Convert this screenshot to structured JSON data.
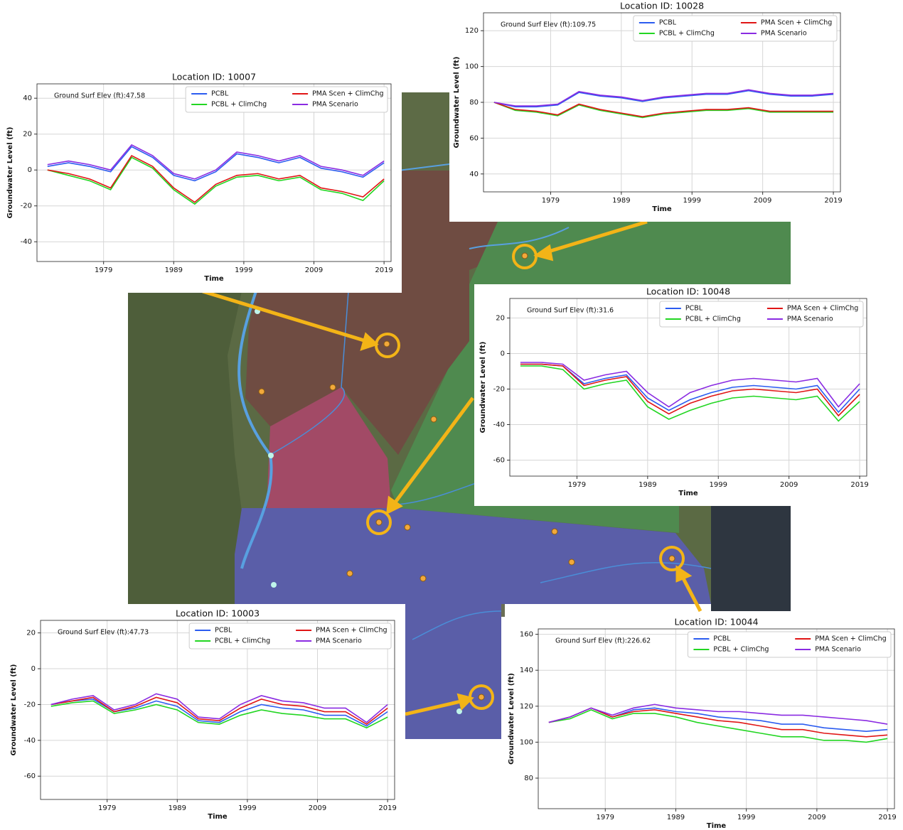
{
  "chart_data": [
    {
      "type": "line",
      "title": "Location ID: 10007",
      "annotation": "Ground Surf Elev (ft):47.58",
      "xlabel": "Time",
      "ylabel": "Groundwater Level (ft)",
      "x": [
        1971,
        1974,
        1977,
        1980,
        1983,
        1986,
        1989,
        1992,
        1995,
        1998,
        2001,
        2004,
        2007,
        2010,
        2013,
        2016,
        2019
      ],
      "series": [
        {
          "name": "PCBL",
          "color": "#2b5cf0",
          "values": [
            2,
            4,
            2,
            -1,
            13,
            7,
            -3,
            -6,
            -1,
            9,
            7,
            4,
            7,
            1,
            -1,
            -4,
            4
          ]
        },
        {
          "name": "PCBL + ClimChg",
          "color": "#22d622",
          "values": [
            0,
            -3,
            -6,
            -11,
            7,
            1,
            -11,
            -19,
            -9,
            -4,
            -3,
            -6,
            -4,
            -11,
            -13,
            -17,
            -6
          ]
        },
        {
          "name": "PMA Scen + ClimChg",
          "color": "#e01515",
          "values": [
            0,
            -2,
            -5,
            -10,
            8,
            2,
            -10,
            -18,
            -8,
            -3,
            -2,
            -5,
            -3,
            -10,
            -12,
            -15,
            -5
          ]
        },
        {
          "name": "PMA Scenario",
          "color": "#8a2be2",
          "values": [
            3,
            5,
            3,
            0,
            14,
            8,
            -2,
            -5,
            0,
            10,
            8,
            5,
            8,
            2,
            0,
            -3,
            5
          ]
        }
      ],
      "xlim": [
        1969.5,
        2020
      ],
      "ylim": [
        -51,
        48
      ],
      "xticks": [
        1979,
        1989,
        1999,
        2009,
        2019
      ],
      "yticks": [
        -40,
        -20,
        0,
        20,
        40
      ],
      "grid": true,
      "legend": "upper center"
    },
    {
      "type": "line",
      "title": "Location ID: 10028",
      "annotation": "Ground Surf Elev (ft):109.75",
      "xlabel": "Time",
      "ylabel": "Groundwater Level (ft)",
      "x": [
        1971,
        1974,
        1977,
        1980,
        1983,
        1986,
        1989,
        1992,
        1995,
        1998,
        2001,
        2004,
        2007,
        2010,
        2013,
        2016,
        2019
      ],
      "series": [
        {
          "name": "PCBL",
          "color": "#2b5cf0",
          "values": [
            80,
            77.5,
            77.5,
            78.5,
            85.5,
            83.5,
            82.5,
            80.5,
            82.5,
            83.5,
            84.5,
            84.5,
            86.5,
            84.5,
            83.5,
            83.5,
            84.5
          ]
        },
        {
          "name": "PCBL + ClimChg",
          "color": "#22d622",
          "values": [
            80,
            75.5,
            74.5,
            72.5,
            78.5,
            75.5,
            73.5,
            71.5,
            73.5,
            74.5,
            75.5,
            75.5,
            76.5,
            74.5,
            74.5,
            74.5,
            74.5
          ]
        },
        {
          "name": "PMA Scen + ClimChg",
          "color": "#e01515",
          "values": [
            80,
            76,
            75,
            73,
            79,
            76,
            74,
            72,
            74,
            75,
            76,
            76,
            77,
            75,
            75,
            75,
            75
          ]
        },
        {
          "name": "PMA Scenario",
          "color": "#8a2be2",
          "values": [
            80,
            78,
            78,
            79,
            86,
            84,
            83,
            81,
            83,
            84,
            85,
            85,
            87,
            85,
            84,
            84,
            85
          ]
        }
      ],
      "xlim": [
        1969.5,
        2020
      ],
      "ylim": [
        30,
        130
      ],
      "xticks": [
        1979,
        1989,
        1999,
        2009,
        2019
      ],
      "yticks": [
        40,
        60,
        80,
        100,
        120
      ],
      "grid": true,
      "legend": "upper center"
    },
    {
      "type": "line",
      "title": "Location ID: 10048",
      "annotation": "Ground Surf Elev (ft):31.6",
      "xlabel": "Time",
      "ylabel": "Groundwater Level (ft)",
      "x": [
        1971,
        1974,
        1977,
        1980,
        1983,
        1986,
        1989,
        1992,
        1995,
        1998,
        2001,
        2004,
        2007,
        2010,
        2013,
        2016,
        2019
      ],
      "series": [
        {
          "name": "PCBL",
          "color": "#2b5cf0",
          "values": [
            -6,
            -6,
            -7,
            -17,
            -14,
            -12,
            -25,
            -32,
            -26,
            -22,
            -19,
            -18,
            -19,
            -20,
            -18,
            -33,
            -20
          ]
        },
        {
          "name": "PCBL + ClimChg",
          "color": "#22d622",
          "values": [
            -7,
            -7,
            -9,
            -20,
            -17,
            -15,
            -30,
            -37,
            -32,
            -28,
            -25,
            -24,
            -25,
            -26,
            -24,
            -38,
            -27
          ]
        },
        {
          "name": "PMA Scen + ClimChg",
          "color": "#e01515",
          "values": [
            -6,
            -6,
            -7,
            -18,
            -15,
            -13,
            -27,
            -34,
            -28,
            -24,
            -21,
            -20,
            -21,
            -22,
            -20,
            -35,
            -23
          ]
        },
        {
          "name": "PMA Scenario",
          "color": "#8a2be2",
          "values": [
            -5,
            -5,
            -6,
            -15,
            -12,
            -10,
            -22,
            -30,
            -22,
            -18,
            -15,
            -14,
            -15,
            -16,
            -14,
            -30,
            -17
          ]
        }
      ],
      "xlim": [
        1969.5,
        2020
      ],
      "ylim": [
        -69,
        31
      ],
      "xticks": [
        1979,
        1989,
        1999,
        2009,
        2019
      ],
      "yticks": [
        -60,
        -40,
        -20,
        0,
        20
      ],
      "grid": true,
      "legend": "upper center"
    },
    {
      "type": "line",
      "title": "Location ID: 10003",
      "annotation": "Ground Surf Elev (ft):47.73",
      "xlabel": "Time",
      "ylabel": "Groundwater Level (ft)",
      "x": [
        1971,
        1974,
        1977,
        1980,
        1983,
        1986,
        1989,
        1992,
        1995,
        1998,
        2001,
        2004,
        2007,
        2010,
        2013,
        2016,
        2019
      ],
      "series": [
        {
          "name": "PCBL",
          "color": "#2b5cf0",
          "values": [
            -20,
            -18,
            -17,
            -24,
            -22,
            -18,
            -21,
            -29,
            -30,
            -24,
            -20,
            -22,
            -23,
            -26,
            -26,
            -32,
            -24
          ]
        },
        {
          "name": "PCBL + ClimChg",
          "color": "#22d622",
          "values": [
            -21,
            -19,
            -18,
            -25,
            -23,
            -20,
            -23,
            -30,
            -31,
            -26,
            -23,
            -25,
            -26,
            -28,
            -28,
            -33,
            -27
          ]
        },
        {
          "name": "PMA Scen + ClimChg",
          "color": "#e01515",
          "values": [
            -20,
            -18,
            -16,
            -24,
            -21,
            -16,
            -19,
            -28,
            -29,
            -22,
            -17,
            -20,
            -21,
            -24,
            -24,
            -31,
            -22
          ]
        },
        {
          "name": "PMA Scenario",
          "color": "#8a2be2",
          "values": [
            -20,
            -17,
            -15,
            -23,
            -20,
            -14,
            -17,
            -27,
            -28,
            -20,
            -15,
            -18,
            -19,
            -22,
            -22,
            -30,
            -20
          ]
        }
      ],
      "xlim": [
        1969.5,
        2020
      ],
      "ylim": [
        -73,
        27
      ],
      "xticks": [
        1979,
        1989,
        1999,
        2009,
        2019
      ],
      "yticks": [
        -60,
        -40,
        -20,
        0,
        20
      ],
      "grid": true,
      "legend": "upper center"
    },
    {
      "type": "line",
      "title": "Location ID: 10044",
      "annotation": "Ground Surf Elev (ft):226.62",
      "xlabel": "Time",
      "ylabel": "Groundwater Level (ft)",
      "x": [
        1971,
        1974,
        1977,
        1980,
        1983,
        1986,
        1989,
        1992,
        1995,
        1998,
        2001,
        2004,
        2007,
        2010,
        2013,
        2016,
        2019
      ],
      "series": [
        {
          "name": "PCBL",
          "color": "#2b5cf0",
          "values": [
            111,
            114,
            119,
            114,
            118,
            119,
            117,
            116,
            114,
            113,
            112,
            110,
            110,
            108,
            107,
            106,
            107
          ]
        },
        {
          "name": "PCBL + ClimChg",
          "color": "#22d622",
          "values": [
            111,
            113,
            118,
            113,
            116,
            116,
            114,
            111,
            109,
            107,
            105,
            103,
            103,
            101,
            101,
            100,
            102
          ]
        },
        {
          "name": "PMA Scen + ClimChg",
          "color": "#e01515",
          "values": [
            111,
            114,
            119,
            114,
            117,
            118,
            116,
            114,
            112,
            111,
            109,
            107,
            107,
            105,
            104,
            103,
            104
          ]
        },
        {
          "name": "PMA Scenario",
          "color": "#8a2be2",
          "values": [
            111,
            114,
            119,
            115,
            119,
            121,
            119,
            118,
            117,
            117,
            116,
            115,
            115,
            114,
            113,
            112,
            110
          ]
        }
      ],
      "xlim": [
        1969.5,
        2020
      ],
      "ylim": [
        63,
        163
      ],
      "xticks": [
        1979,
        1989,
        1999,
        2009,
        2019
      ],
      "yticks": [
        80,
        100,
        120,
        140,
        160
      ],
      "grid": true,
      "legend": "upper center"
    }
  ]
}
